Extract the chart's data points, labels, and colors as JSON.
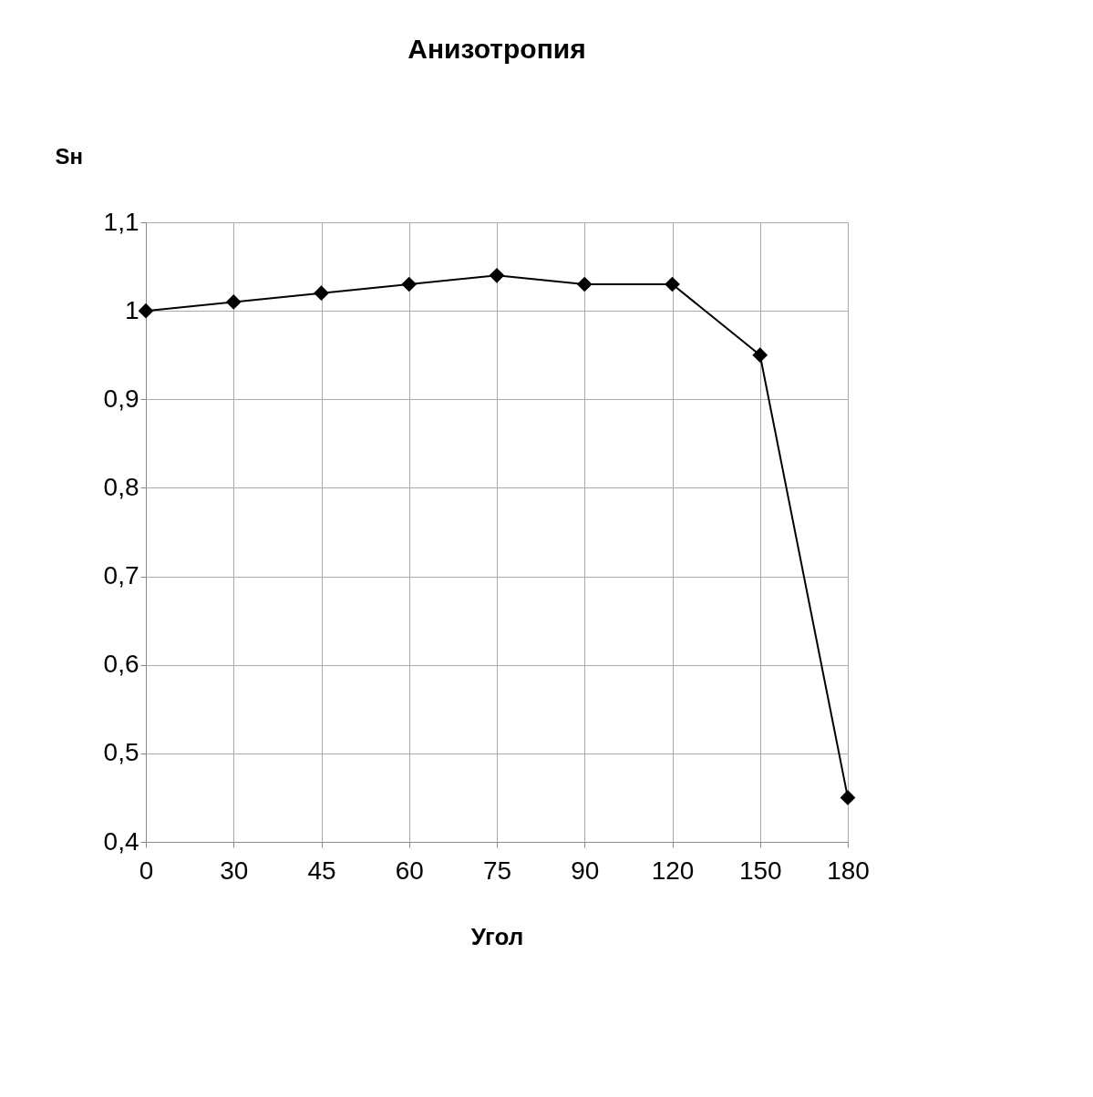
{
  "chart_data": {
    "type": "line",
    "title": "Анизотропия",
    "xlabel": "Угол",
    "ylabel": "Sн",
    "categories": [
      "0",
      "30",
      "45",
      "60",
      "75",
      "90",
      "120",
      "150",
      "180"
    ],
    "series": [
      {
        "color": "#000000",
        "values": [
          1.0,
          1.01,
          1.02,
          1.03,
          1.04,
          1.03,
          1.03,
          0.95,
          0.45
        ]
      }
    ],
    "ylim": [
      0.4,
      1.1
    ],
    "yticks": [
      {
        "value": 0.4,
        "label": "0,4"
      },
      {
        "value": 0.5,
        "label": "0,5"
      },
      {
        "value": 0.6,
        "label": "0,6"
      },
      {
        "value": 0.7,
        "label": "0,7"
      },
      {
        "value": 0.8,
        "label": "0,8"
      },
      {
        "value": 0.9,
        "label": "0,9"
      },
      {
        "value": 1,
        "label": "1"
      },
      {
        "value": 1.1,
        "label": "1,1"
      }
    ],
    "grid": true,
    "marker": "diamond",
    "line_style": "solid"
  }
}
